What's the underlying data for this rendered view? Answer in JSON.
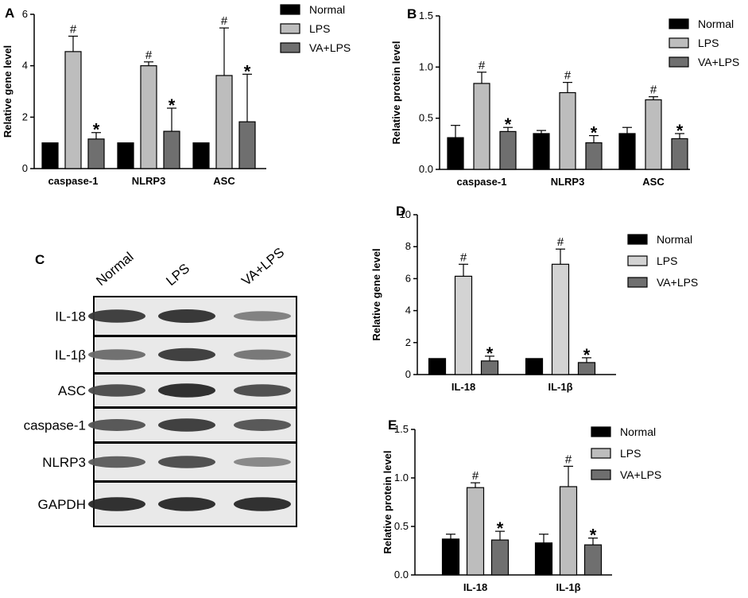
{
  "chart_data": [
    {
      "id": "A",
      "panel_label": "A",
      "type": "bar",
      "ylabel": "Relative gene level",
      "ylim": [
        0,
        6
      ],
      "yticks": [
        "0",
        "2",
        "4",
        "6"
      ],
      "categories": [
        "caspase-1",
        "NLRP3",
        "ASC"
      ],
      "legend_position": "top-right",
      "series": [
        {
          "name": "Normal",
          "values": [
            1,
            1,
            1
          ],
          "errors": [
            0,
            0,
            0
          ],
          "marks": [
            "",
            "",
            ""
          ],
          "color": "#000000"
        },
        {
          "name": "LPS",
          "values": [
            4.55,
            4.0,
            3.62
          ],
          "errors": [
            0.6,
            0.15,
            1.85
          ],
          "marks": [
            "#",
            "#",
            "#"
          ],
          "color": "#bdbdbd"
        },
        {
          "name": "VA+LPS",
          "values": [
            1.15,
            1.45,
            1.82
          ],
          "errors": [
            0.25,
            0.9,
            1.85
          ],
          "marks": [
            "*",
            "*",
            "*"
          ],
          "color": "#6f6f6f"
        }
      ]
    },
    {
      "id": "B",
      "panel_label": "B",
      "type": "bar",
      "ylabel": "Relative protein level",
      "ylim": [
        0,
        1.5
      ],
      "yticks": [
        "0.0",
        "0.5",
        "1.0",
        "1.5"
      ],
      "categories": [
        "caspase-1",
        "NLRP3",
        "ASC"
      ],
      "legend_position": "top-right",
      "series": [
        {
          "name": "Normal",
          "values": [
            0.31,
            0.35,
            0.35
          ],
          "errors": [
            0.12,
            0.03,
            0.06
          ],
          "marks": [
            "",
            "",
            ""
          ],
          "color": "#000000"
        },
        {
          "name": "LPS",
          "values": [
            0.84,
            0.75,
            0.68
          ],
          "errors": [
            0.11,
            0.1,
            0.03
          ],
          "marks": [
            "#",
            "#",
            "#"
          ],
          "color": "#bdbdbd"
        },
        {
          "name": "VA+LPS",
          "values": [
            0.37,
            0.26,
            0.3
          ],
          "errors": [
            0.04,
            0.07,
            0.05
          ],
          "marks": [
            "*",
            "*",
            "*"
          ],
          "color": "#6f6f6f"
        }
      ]
    },
    {
      "id": "D",
      "panel_label": "D",
      "type": "bar",
      "ylabel": "Relative gene level",
      "ylim": [
        0,
        10
      ],
      "yticks": [
        "0",
        "2",
        "4",
        "6",
        "8",
        "10"
      ],
      "categories": [
        "IL-18",
        "IL-1β"
      ],
      "legend_position": "top-right",
      "series": [
        {
          "name": "Normal",
          "values": [
            1,
            1
          ],
          "errors": [
            0,
            0
          ],
          "marks": [
            "",
            ""
          ],
          "color": "#000000"
        },
        {
          "name": "LPS",
          "values": [
            6.15,
            6.9
          ],
          "errors": [
            0.75,
            0.95
          ],
          "marks": [
            "#",
            "#"
          ],
          "color": "#d3d3d3"
        },
        {
          "name": "VA+LPS",
          "values": [
            0.85,
            0.75
          ],
          "errors": [
            0.3,
            0.3
          ],
          "marks": [
            "*",
            "*"
          ],
          "color": "#6f6f6f"
        }
      ]
    },
    {
      "id": "E",
      "panel_label": "E",
      "type": "bar",
      "ylabel": "Relative protein level",
      "ylim": [
        0,
        1.5
      ],
      "yticks": [
        "0.0",
        "0.5",
        "1.0",
        "1.5"
      ],
      "categories": [
        "IL-18",
        "IL-1β"
      ],
      "legend_position": "top-right",
      "series": [
        {
          "name": "Normal",
          "values": [
            0.37,
            0.33
          ],
          "errors": [
            0.05,
            0.09
          ],
          "marks": [
            "",
            ""
          ],
          "color": "#000000"
        },
        {
          "name": "LPS",
          "values": [
            0.9,
            0.91
          ],
          "errors": [
            0.05,
            0.21
          ],
          "marks": [
            "#",
            "#"
          ],
          "color": "#bdbdbd"
        },
        {
          "name": "VA+LPS",
          "values": [
            0.36,
            0.31
          ],
          "errors": [
            0.09,
            0.07
          ],
          "marks": [
            "*",
            "*"
          ],
          "color": "#6f6f6f"
        }
      ]
    }
  ],
  "western_blot": {
    "panel_label": "C",
    "lanes": [
      "Normal",
      "LPS",
      "VA+LPS"
    ],
    "rows": [
      {
        "label": "IL-18",
        "intensity": [
          0.85,
          0.9,
          0.45
        ]
      },
      {
        "label": "IL-1β",
        "intensity": [
          0.55,
          0.85,
          0.5
        ]
      },
      {
        "label": "ASC",
        "intensity": [
          0.75,
          0.95,
          0.75
        ]
      },
      {
        "label": "caspase-1",
        "intensity": [
          0.7,
          0.85,
          0.7
        ]
      },
      {
        "label": "NLRP3",
        "intensity": [
          0.65,
          0.75,
          0.4
        ]
      },
      {
        "label": "GAPDH",
        "intensity": [
          0.95,
          0.95,
          0.95
        ]
      }
    ]
  }
}
